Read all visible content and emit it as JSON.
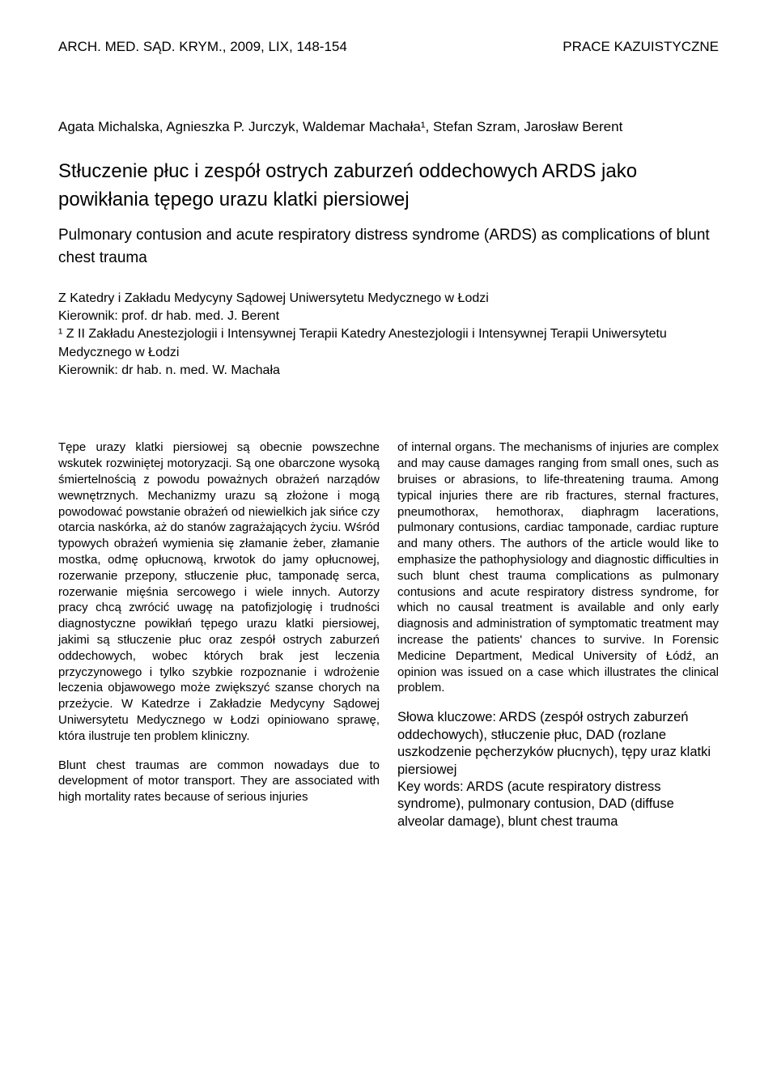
{
  "header": {
    "left": "ARCH. MED. SĄD. KRYM., 2009, LIX, 148-154",
    "right": "PRACE KAZUISTYCZNE"
  },
  "authors_line": "Agata Michalska, Agnieszka P. Jurczyk, Waldemar Machała¹, Stefan Szram, Jarosław Berent",
  "title_pl": "Stłuczenie płuc i zespół ostrych zaburzeń oddechowych ARDS jako powikłania tępego urazu klatki piersiowej",
  "title_en": "Pulmonary contusion and acute respiratory distress syndrome (ARDS) as complications of blunt chest trauma",
  "affil": {
    "l1": "Z Katedry i Zakładu Medycyny Sądowej Uniwersytetu Medycznego w Łodzi",
    "l2": "Kierownik: prof. dr hab. med. J. Berent",
    "l3": "¹ Z II Zakładu Anestezjologii i Intensywnej Terapii Katedry Anestezjologii i Intensywnej Terapii Uniwersytetu Medycznego w Łodzi",
    "l4": "Kierownik: dr hab. n. med. W. Machała"
  },
  "left_col": {
    "p1": "Tępe urazy klatki piersiowej są obecnie powszechne wskutek rozwiniętej motoryzacji. Są one obarczone wysoką śmiertelnością z powodu poważnych obrażeń narządów wewnętrznych. Mechanizmy urazu są złożone i mogą powodować powstanie obrażeń od niewielkich jak sińce czy otarcia naskórka, aż do stanów zagrażających życiu. Wśród typowych obrażeń wymienia się złamanie żeber, złamanie mostka, odmę opłucnową, krwotok do jamy opłucnowej, rozerwanie przepony, stłuczenie płuc, tamponadę serca, rozerwanie mięśnia sercowego i wiele innych. Autorzy pracy chcą zwrócić uwagę na patofizjologię i trudności diagnostyczne powikłań tępego urazu klatki piersiowej, jakimi są stłuczenie płuc oraz zespół ostrych zaburzeń oddechowych, wobec których brak jest leczenia przyczynowego i tylko szybkie rozpoznanie i wdrożenie leczenia objawowego może zwiększyć szanse chorych na przeżycie. W Katedrze i Zakładzie Medycyny Sądowej Uniwersytetu Medycznego w Łodzi opiniowano sprawę, która ilustruje ten problem kliniczny.",
    "p2": "Blunt chest traumas are common nowadays due to development of motor transport. They are associated with high mortality rates because of serious injuries"
  },
  "right_col": {
    "p1": "of internal organs. The mechanisms of injuries are complex and may cause damages ranging from small ones, such as bruises or abrasions, to life-threatening trauma. Among typical injuries there are rib fractures, sternal fractures, pneumothorax, hemothorax, diaphragm lacerations, pulmonary contusions, cardiac tamponade, cardiac rupture and many others. The authors of the article would like to emphasize the pathophysiology and diagnostic difficulties in such blunt chest trauma complications as pulmonary contusions and acute respiratory distress syndrome, for which no causal treatment is available and only early diagnosis and administration of symptomatic treatment may increase the patients' chances to survive. In Forensic Medicine Department, Medical University of Łódź, an opinion was issued on a case which illustrates the clinical problem.",
    "kw_pl": "Słowa kluczowe: ARDS (zespół ostrych zaburzeń oddechowych), stłuczenie płuc, DAD (rozlane uszkodzenie pęcherzyków płucnych), tępy uraz klatki piersiowej",
    "kw_en": "Key words: ARDS (acute respiratory distress syndrome), pulmonary contusion, DAD (diffuse alveolar damage), blunt chest trauma"
  }
}
